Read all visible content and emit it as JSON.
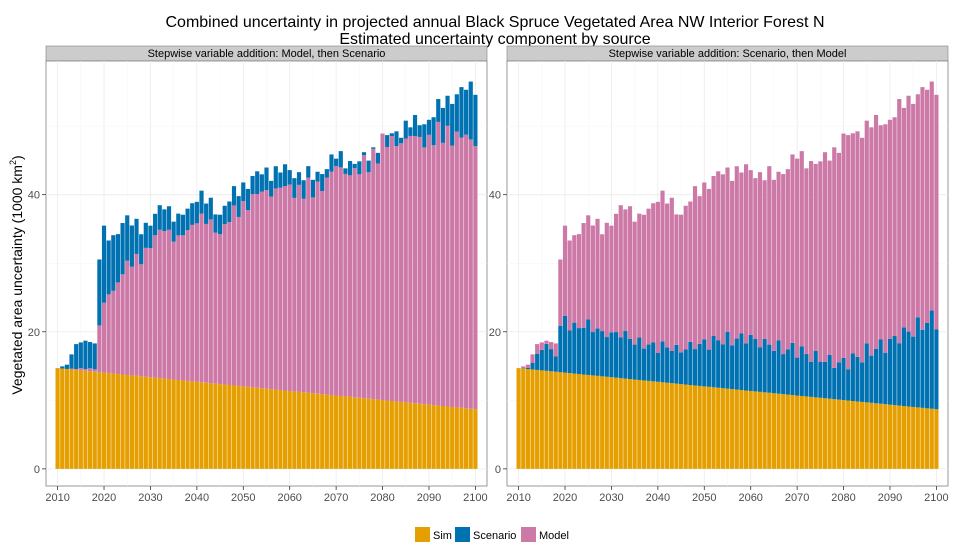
{
  "chart_data": {
    "type": "bar",
    "stacked": true,
    "title_line1": "Combined uncertainty in projected annual  Black Spruce Vegetated Area NW Interior Forest N",
    "title_line2": "Estimated uncertainty component by source",
    "ylabel_main": "Vegetated area uncertainty (1000 km",
    "ylabel_sup": "2",
    "ylabel_close": ")",
    "xlim": [
      2007.5,
      2102.5
    ],
    "ylim": [
      -2.5,
      59.5
    ],
    "x_ticks": [
      2010,
      2020,
      2030,
      2040,
      2050,
      2060,
      2070,
      2080,
      2090,
      2100
    ],
    "y_ticks": [
      0,
      20,
      40
    ],
    "grid": true,
    "legend_position": "bottom",
    "legend": [
      {
        "name": "Sim",
        "color": "#E69F00"
      },
      {
        "name": "Scenario",
        "color": "#0072B2"
      },
      {
        "name": "Model",
        "color": "#CC79A7"
      }
    ],
    "series_definitions": {
      "sim": {
        "start": 14.7,
        "end": 8.7
      },
      "total": {
        "2010": 14.7,
        "2012": 15.2,
        "2014": 18.2,
        "2016": 18.7,
        "2018": 18.3,
        "2019": 31.0,
        "2020": 34.0,
        "2022": 34.0,
        "2024": 36.0,
        "2030": 35.5,
        "2033": 39.0,
        "2036": 36.0,
        "2040": 40.0,
        "2045": 37.5,
        "2050": 41.5,
        "2055": 43.5,
        "2060": 43.5,
        "2065": 42.5,
        "2070": 45.5,
        "2075": 44.5,
        "2080": 48.0,
        "2085": 50.0,
        "2090": 51.0,
        "2094": 54.0,
        "2100": 56.0
      }
    },
    "panels": [
      {
        "strip": "Stepwise variable addition: Model, then Scenario",
        "order": [
          "Sim",
          "Model",
          "Scenario"
        ],
        "model_share": {
          "2010": 0.0,
          "2018": 0.1,
          "2019": 0.4,
          "2021": 0.58,
          "2030": 0.86,
          "2040": 0.88,
          "2060": 0.92,
          "2080": 0.98,
          "2090": 0.93,
          "2100": 0.825
        }
      },
      {
        "strip": "Stepwise variable addition: Scenario, then Model",
        "order": [
          "Sim",
          "Scenario",
          "Model"
        ],
        "scenario_share": {
          "2010": 0.0,
          "2016": 0.9,
          "2019": 0.4,
          "2021": 0.35,
          "2030": 0.28,
          "2040": 0.19,
          "2060": 0.24,
          "2080": 0.14,
          "2090": 0.22,
          "2100": 0.283
        }
      }
    ]
  }
}
